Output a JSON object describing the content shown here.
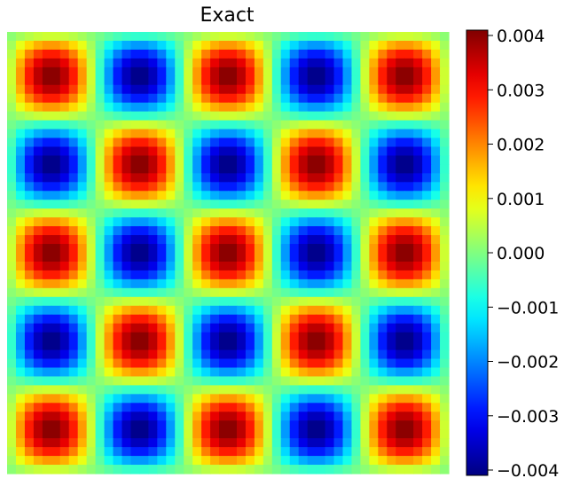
{
  "chart_data": {
    "type": "heatmap",
    "title": "Exact",
    "xlabel": "",
    "ylabel": "",
    "colormap": "jet",
    "grid": false,
    "axes_visible": false,
    "resolution": [
      50,
      50
    ],
    "function": "0.004 * sin(5*pi*x) * sin(5*pi*y)",
    "pattern_signs": [
      [
        1,
        -1,
        1,
        -1,
        1
      ],
      [
        -1,
        1,
        -1,
        1,
        -1
      ],
      [
        1,
        -1,
        1,
        -1,
        1
      ],
      [
        -1,
        1,
        -1,
        1,
        -1
      ],
      [
        1,
        -1,
        1,
        -1,
        1
      ]
    ],
    "peak_amplitude": 0.004,
    "colorbar": {
      "vmin": -0.004,
      "vmax": 0.004,
      "ticks": [
        0.004,
        0.003,
        0.002,
        0.001,
        0.0,
        -0.001,
        -0.002,
        -0.003,
        -0.004
      ],
      "tick_labels": [
        "0.004",
        "0.003",
        "0.002",
        "0.001",
        "0.000",
        "−0.001",
        "−0.002",
        "−0.003",
        "−0.004"
      ]
    },
    "colors": {
      "jet_low": "#00007f",
      "jet_mid": "#7dff7a",
      "jet_high": "#7f0000"
    }
  }
}
